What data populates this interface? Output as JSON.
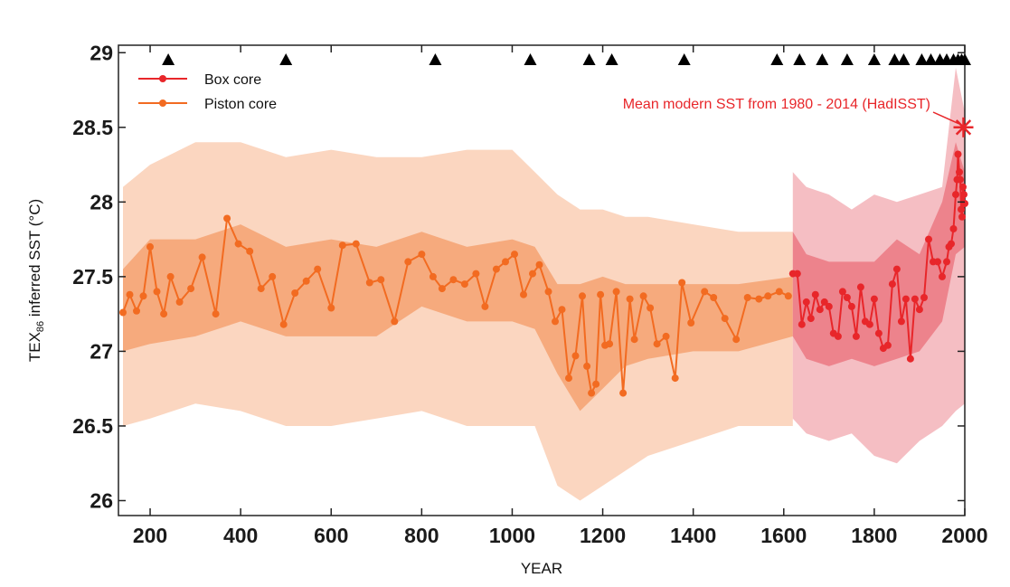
{
  "chart_data": {
    "type": "line",
    "title": "",
    "xlabel": "YEAR",
    "ylabel": {
      "prefix": "TEX",
      "subscript": "86",
      "suffix": " inferred SST (°C)"
    },
    "xlim": [
      130,
      2000
    ],
    "ylim": [
      25.9,
      29.05
    ],
    "xticks": [
      200,
      400,
      600,
      800,
      1000,
      1200,
      1400,
      1600,
      1800,
      2000
    ],
    "yticks": [
      26,
      26.5,
      27,
      27.5,
      28,
      28.5,
      29
    ],
    "ytick_labels": [
      "26",
      "26.5",
      "27",
      "27.5",
      "28",
      "28.5",
      "29"
    ],
    "legend_position": "top-left",
    "grid": false,
    "colors": {
      "box_core": "#e8262a",
      "piston_core": "#f26b21",
      "piston_band_outer": "#fbd4bd",
      "piston_band_inner": "#f5a271",
      "box_band_outer": "#f3b3b8",
      "box_band_inner": "#ea6f7a",
      "marker": "#000000"
    },
    "series": [
      {
        "name": "Box core",
        "x": [
          1620,
          1630,
          1640,
          1650,
          1660,
          1670,
          1680,
          1690,
          1700,
          1710,
          1720,
          1730,
          1740,
          1750,
          1760,
          1770,
          1780,
          1790,
          1800,
          1810,
          1820,
          1830,
          1840,
          1850,
          1860,
          1870,
          1880,
          1890,
          1900,
          1910,
          1920,
          1930,
          1940,
          1950,
          1960,
          1965,
          1970,
          1975,
          1980,
          1983,
          1985,
          1988,
          1990,
          1992,
          1994,
          1996,
          1998,
          2000
        ],
        "y": [
          27.52,
          27.52,
          27.18,
          27.33,
          27.22,
          27.38,
          27.28,
          27.33,
          27.3,
          27.12,
          27.1,
          27.4,
          27.36,
          27.3,
          27.1,
          27.43,
          27.2,
          27.18,
          27.35,
          27.12,
          27.02,
          27.04,
          27.45,
          27.55,
          27.2,
          27.35,
          26.95,
          27.35,
          27.28,
          27.36,
          27.75,
          27.6,
          27.6,
          27.5,
          27.6,
          27.7,
          27.72,
          27.82,
          28.05,
          28.15,
          28.32,
          28.2,
          28.15,
          27.95,
          27.9,
          28.1,
          28.05,
          27.99
        ]
      },
      {
        "name": "Piston core",
        "x": [
          140,
          155,
          170,
          185,
          200,
          215,
          230,
          245,
          265,
          290,
          315,
          345,
          370,
          395,
          420,
          445,
          470,
          495,
          520,
          545,
          570,
          600,
          625,
          655,
          685,
          710,
          740,
          770,
          800,
          825,
          845,
          870,
          895,
          920,
          940,
          965,
          985,
          1005,
          1025,
          1045,
          1060,
          1080,
          1095,
          1110,
          1125,
          1140,
          1155,
          1165,
          1175,
          1185,
          1195,
          1205,
          1215,
          1230,
          1245,
          1260,
          1270,
          1290,
          1305,
          1320,
          1340,
          1360,
          1375,
          1395,
          1425,
          1445,
          1470,
          1495,
          1520,
          1545,
          1565,
          1590,
          1610
        ],
        "y": [
          27.26,
          27.38,
          27.27,
          27.37,
          27.7,
          27.4,
          27.25,
          27.5,
          27.33,
          27.42,
          27.63,
          27.25,
          27.89,
          27.72,
          27.67,
          27.42,
          27.5,
          27.18,
          27.39,
          27.47,
          27.55,
          27.29,
          27.71,
          27.72,
          27.46,
          27.48,
          27.2,
          27.6,
          27.65,
          27.5,
          27.42,
          27.48,
          27.45,
          27.52,
          27.3,
          27.55,
          27.6,
          27.65,
          27.38,
          27.52,
          27.58,
          27.4,
          27.2,
          27.28,
          26.82,
          26.97,
          27.37,
          26.9,
          26.72,
          26.78,
          27.38,
          27.04,
          27.05,
          27.4,
          26.72,
          27.35,
          27.08,
          27.37,
          27.29,
          27.05,
          27.1,
          26.82,
          27.46,
          27.19,
          27.4,
          27.36,
          27.22,
          27.08,
          27.36,
          27.35,
          27.37,
          27.4,
          27.37
        ]
      }
    ],
    "piston_band_outer": {
      "x": [
        140,
        200,
        300,
        400,
        500,
        600,
        700,
        800,
        900,
        1000,
        1050,
        1100,
        1150,
        1200,
        1250,
        1300,
        1400,
        1500,
        1620
      ],
      "upper": [
        28.1,
        28.25,
        28.4,
        28.4,
        28.3,
        28.35,
        28.3,
        28.3,
        28.35,
        28.35,
        28.2,
        28.05,
        27.95,
        27.95,
        27.9,
        27.9,
        27.85,
        27.8,
        27.8
      ],
      "lower": [
        26.5,
        26.55,
        26.65,
        26.6,
        26.5,
        26.5,
        26.55,
        26.6,
        26.5,
        26.5,
        26.5,
        26.1,
        26.0,
        26.1,
        26.2,
        26.3,
        26.4,
        26.5,
        26.5
      ]
    },
    "piston_band_inner": {
      "x": [
        140,
        200,
        300,
        400,
        500,
        600,
        700,
        800,
        900,
        1000,
        1050,
        1100,
        1150,
        1200,
        1250,
        1300,
        1400,
        1500,
        1620
      ],
      "upper": [
        27.55,
        27.75,
        27.75,
        27.85,
        27.7,
        27.75,
        27.7,
        27.8,
        27.7,
        27.75,
        27.7,
        27.45,
        27.45,
        27.5,
        27.45,
        27.45,
        27.45,
        27.45,
        27.5
      ],
      "lower": [
        27.0,
        27.05,
        27.1,
        27.2,
        27.1,
        27.1,
        27.1,
        27.3,
        27.2,
        27.2,
        27.15,
        26.85,
        26.6,
        26.75,
        26.9,
        26.95,
        27.0,
        27.0,
        27.1
      ]
    },
    "box_band_outer": {
      "x": [
        1620,
        1650,
        1700,
        1750,
        1800,
        1850,
        1900,
        1950,
        1980,
        2000
      ],
      "upper": [
        28.2,
        28.1,
        28.05,
        27.95,
        28.05,
        28.0,
        28.05,
        28.1,
        28.9,
        28.6
      ],
      "lower": [
        26.55,
        26.45,
        26.4,
        26.45,
        26.3,
        26.25,
        26.4,
        26.5,
        26.6,
        26.65
      ]
    },
    "box_band_inner": {
      "x": [
        1620,
        1650,
        1700,
        1750,
        1800,
        1850,
        1900,
        1950,
        1980,
        2000
      ],
      "upper": [
        27.8,
        27.65,
        27.6,
        27.6,
        27.6,
        27.75,
        27.65,
        28.0,
        28.4,
        28.2
      ],
      "lower": [
        27.1,
        26.95,
        26.9,
        26.95,
        26.9,
        26.95,
        27.0,
        27.2,
        27.65,
        27.7
      ]
    },
    "age_markers": {
      "description_shape": "triangle",
      "x": [
        240,
        500,
        830,
        1040,
        1170,
        1220,
        1380,
        1585,
        1635,
        1685,
        1740,
        1800,
        1845,
        1865,
        1905,
        1925,
        1945,
        1960,
        1975,
        1985,
        1993,
        2000
      ]
    },
    "modern_sst": {
      "label": "Mean modern SST from 1980 - 2014 (HadISST)",
      "x": 1997,
      "y": 28.5
    }
  }
}
